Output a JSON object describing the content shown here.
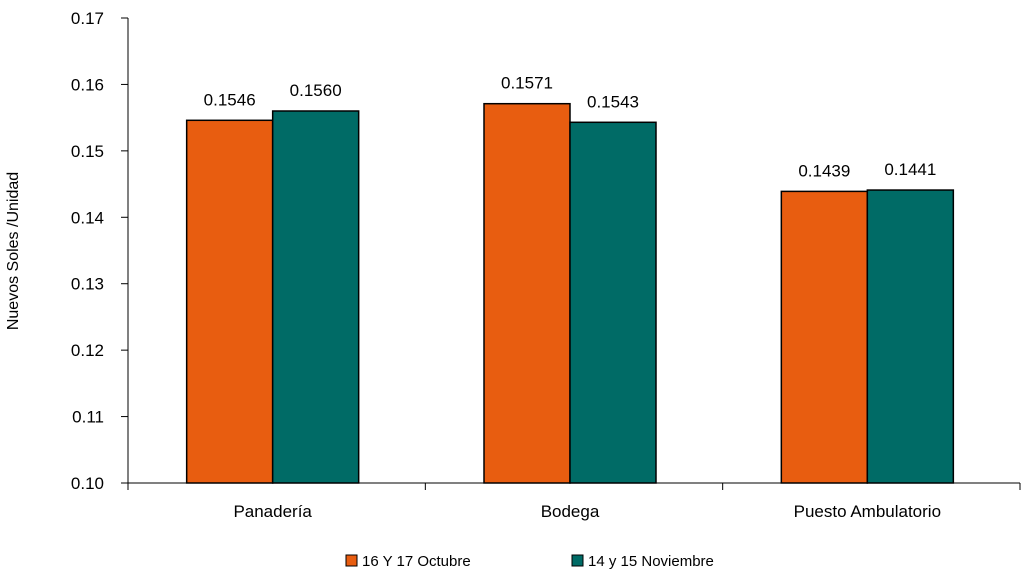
{
  "chart_data": {
    "type": "bar",
    "title": "",
    "xlabel": "",
    "ylabel": "Nuevos Soles /Unidad",
    "categories": [
      "Panadería",
      "Bodega",
      "Puesto Ambulatorio"
    ],
    "series": [
      {
        "name": "16 Y 17 Octubre",
        "color": "#E85D10",
        "values": [
          0.1546,
          0.1571,
          0.1439
        ],
        "labels": [
          "0.1546",
          "0.1571",
          "0.1439"
        ]
      },
      {
        "name": "14 y 15 Noviembre",
        "color": "#006B66",
        "values": [
          0.156,
          0.1543,
          0.1441
        ],
        "labels": [
          "0.1560",
          "0.1543",
          "0.1441"
        ]
      }
    ],
    "ylim": [
      0.1,
      0.17
    ],
    "yticks": [
      "0.10",
      "0.11",
      "0.12",
      "0.13",
      "0.14",
      "0.15",
      "0.16",
      "0.17"
    ],
    "grid": false,
    "legend_position": "bottom"
  }
}
